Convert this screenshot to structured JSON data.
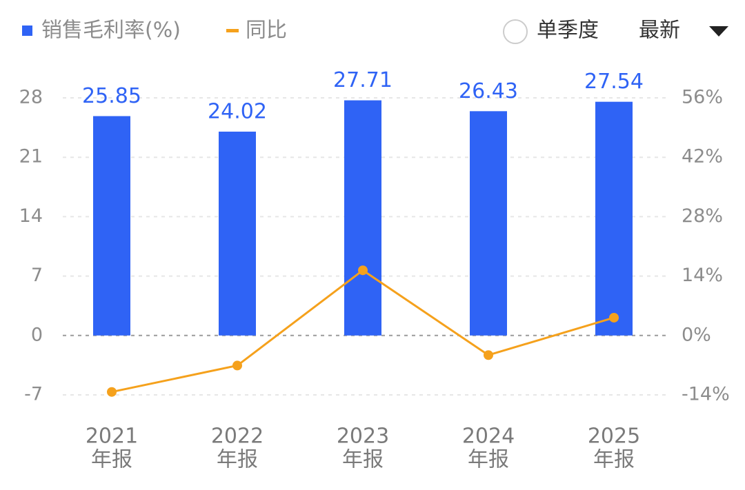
{
  "chart_data": {
    "type": "bar",
    "categories": [
      [
        "2021",
        "年报"
      ],
      [
        "2022",
        "年报"
      ],
      [
        "2023",
        "年报"
      ],
      [
        "2024",
        "年报"
      ],
      [
        "2025",
        "年报"
      ]
    ],
    "series": [
      {
        "name": "销售毛利率(%)",
        "type": "bar",
        "color": "#2f63f5",
        "values": [
          25.85,
          24.02,
          27.71,
          26.43,
          27.54
        ]
      },
      {
        "name": "同比",
        "type": "line",
        "axis": "y2",
        "color": "#f5a11c",
        "values": [
          -13.3,
          -7.08,
          15.36,
          -4.62,
          4.2
        ]
      }
    ],
    "ylim": [
      -7,
      28
    ],
    "yticks": [
      28,
      21,
      14,
      7,
      0,
      -7
    ],
    "y2lim": [
      -14,
      56
    ],
    "y2ticks": [
      {
        "value": 56,
        "label": "56%"
      },
      {
        "value": 42,
        "label": "42%"
      },
      {
        "value": 28,
        "label": "28%"
      },
      {
        "value": 14,
        "label": "14%"
      },
      {
        "value": 0,
        "label": "0%"
      },
      {
        "value": -14,
        "label": "-14%"
      }
    ],
    "grid": true,
    "value_labels_shown": true,
    "controls": {
      "single_quarter": "单季度",
      "period": "最新"
    }
  }
}
